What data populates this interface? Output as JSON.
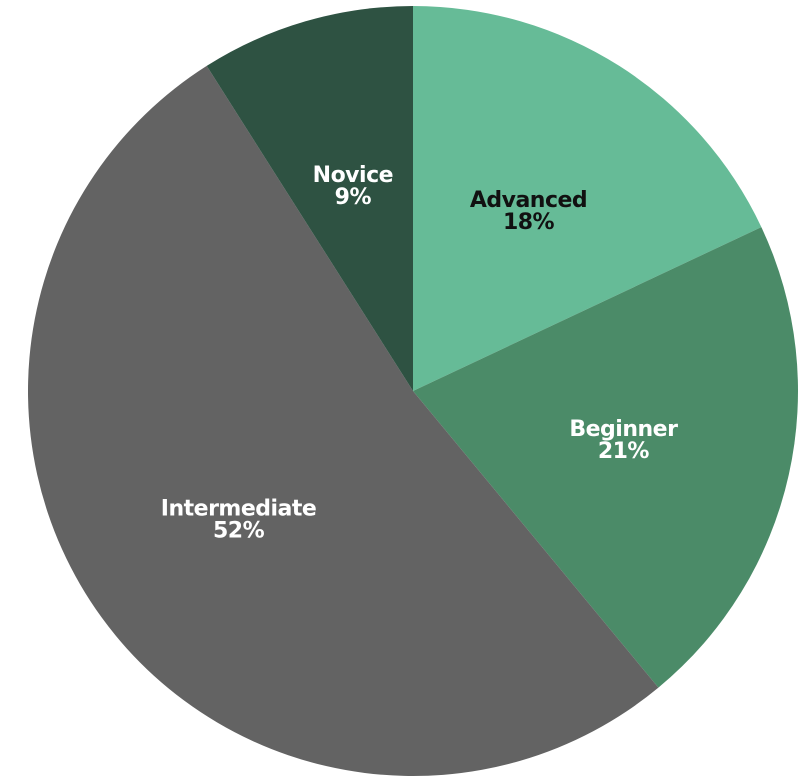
{
  "chart_data": {
    "type": "pie",
    "title": "",
    "start_angle_deg": 0,
    "direction": "clockwise",
    "slices": [
      {
        "label": "Advanced",
        "value": 18,
        "value_label": "18%",
        "color": "#66bb97",
        "label_color": "#111111"
      },
      {
        "label": "Beginner",
        "value": 21,
        "value_label": "21%",
        "color": "#4b8b68",
        "label_color": "#ffffff"
      },
      {
        "label": "Intermediate",
        "value": 52,
        "value_label": "52%",
        "color": "#636363",
        "label_color": "#ffffff"
      },
      {
        "label": "Novice",
        "value": 9,
        "value_label": "9%",
        "color": "#2e5242",
        "label_color": "#ffffff"
      }
    ]
  }
}
